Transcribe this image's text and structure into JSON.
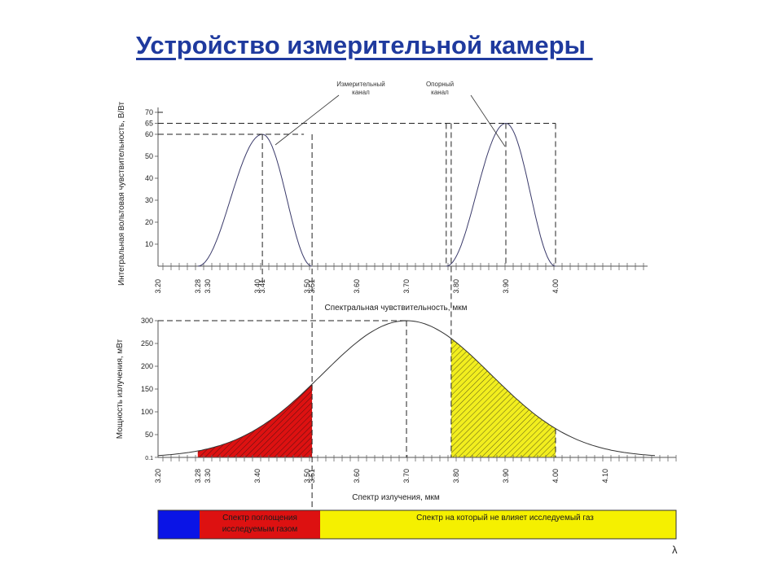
{
  "slide": {
    "title": "Устройство измерительной камеры "
  },
  "chart_data": [
    {
      "type": "line",
      "title": "",
      "ylabel": "Интегральная вольтовая чувствительность, В/Вт",
      "xlabel": "Спектральная чувствительность, мкм",
      "xlim": [
        3.2,
        4.2
      ],
      "ylim": [
        0,
        70
      ],
      "yticks": [
        10,
        20,
        30,
        40,
        50,
        60,
        65,
        70
      ],
      "xticks": [
        "3.20",
        "3.28",
        "3.30",
        "3.40",
        "3.41",
        "3.50",
        "3.51",
        "3.60",
        "3.70",
        "3.80",
        "3.90",
        "4.00"
      ],
      "series": [
        {
          "name": "Измерительный канал",
          "peak_x": 3.41,
          "peak_y": 60,
          "x_start": 3.28,
          "x_end": 3.51
        },
        {
          "name": "Опорный канал",
          "peak_x": 3.9,
          "peak_y": 65,
          "x_start": 3.78,
          "x_end": 4.0
        }
      ]
    },
    {
      "type": "area",
      "title": "",
      "ylabel": "Мощность излучения, мВт",
      "xlabel": "Спектр излучения, мкм",
      "xlim": [
        3.2,
        4.2
      ],
      "ylim": [
        0,
        300
      ],
      "yticks": [
        "0.1",
        "50",
        "100",
        "150",
        "200",
        "250",
        "300"
      ],
      "xticks": [
        "3.20",
        "3.28",
        "3.30",
        "3.40",
        "3.50",
        "3.51",
        "3.60",
        "3.70",
        "3.80",
        "3.90",
        "4.00",
        "4.10"
      ],
      "peak": {
        "x": 3.7,
        "y": 300
      },
      "shaded": [
        {
          "from": 3.28,
          "to": 3.51,
          "color": "#dd1111"
        },
        {
          "from": 3.79,
          "to": 4.0,
          "color": "#f2ee1e"
        }
      ]
    }
  ],
  "band": {
    "segments": [
      {
        "label": "",
        "color": "#0a14e6"
      },
      {
        "label": "Спектр поглощения исследуемым газом",
        "color": "#dd1111"
      },
      {
        "label": "Спектр на который не влияет исследуемый газ",
        "color": "#f5f000"
      }
    ],
    "axis_symbol": "λ"
  }
}
